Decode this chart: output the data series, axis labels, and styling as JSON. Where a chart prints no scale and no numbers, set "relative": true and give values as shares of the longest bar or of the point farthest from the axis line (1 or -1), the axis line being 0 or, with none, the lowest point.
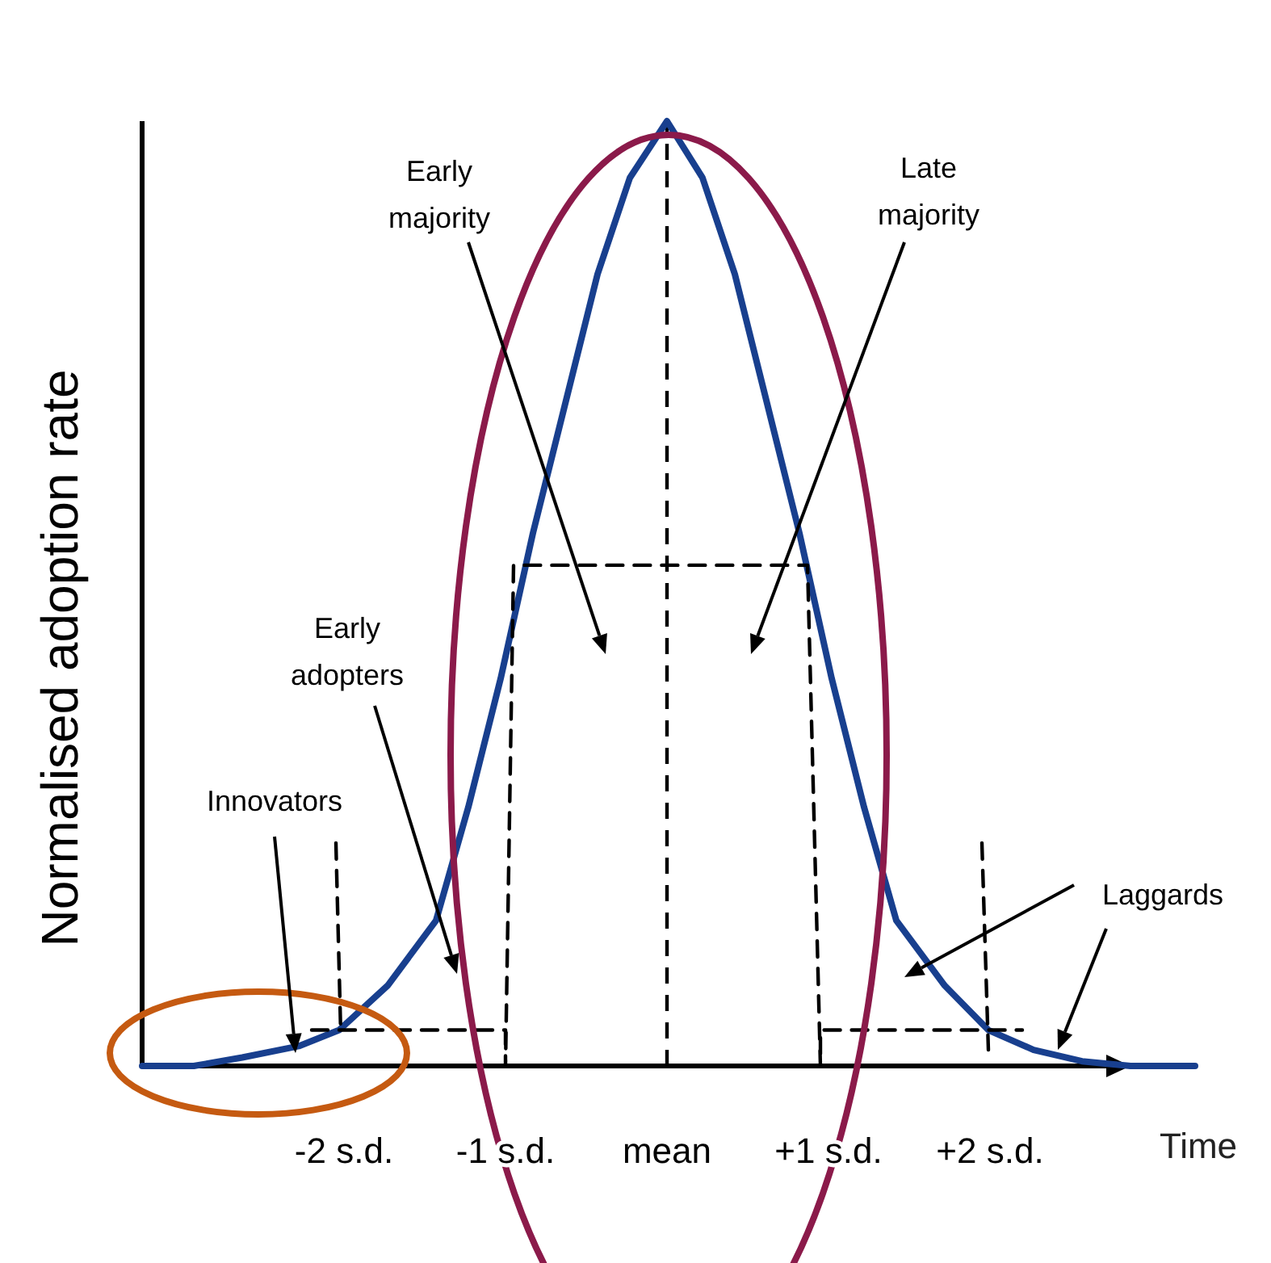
{
  "chart_data": {
    "type": "line",
    "relative": true,
    "xlabel": "Time",
    "ylabel": "Normalised adoption rate",
    "xlim": [
      -3.25,
      3.27
    ],
    "xticks": [
      {
        "value": -2,
        "label": "-2 s.d."
      },
      {
        "value": -1,
        "label": "-1 s.d."
      },
      {
        "value": 0,
        "label": "mean"
      },
      {
        "value": 1,
        "label": "+1 s.d."
      },
      {
        "value": 2,
        "label": "+2 s.d."
      }
    ],
    "tick_labels": "x",
    "grid": false,
    "marker": "none",
    "series": [
      {
        "color": "#183f8e",
        "line_style": "solid",
        "x": [
          -3.25,
          -2.93,
          -2.63,
          -2.28,
          -2.03,
          -1.73,
          -1.43,
          -1.23,
          -1.03,
          -0.83,
          -0.63,
          -0.43,
          -0.23,
          0,
          0.22,
          0.42,
          0.62,
          0.82,
          1.02,
          1.22,
          1.42,
          1.72,
          1.99,
          2.27,
          2.57,
          2.87,
          3.27
        ],
        "values": [
          0,
          0,
          0.009,
          0.021,
          0.038,
          0.085,
          0.154,
          0.274,
          0.41,
          0.564,
          0.701,
          0.838,
          0.94,
          1,
          0.94,
          0.838,
          0.701,
          0.564,
          0.41,
          0.274,
          0.154,
          0.085,
          0.038,
          0.017,
          0.005,
          0,
          0
        ]
      },
      {
        "color": "#000000",
        "line_style": "dashed",
        "x": [
          -2.2,
          -1,
          -1,
          -0.95,
          0.87,
          0.95,
          0.95,
          2.2
        ],
        "values": [
          0.038,
          0.038,
          0,
          0.53,
          0.53,
          0,
          0.038,
          0.038
        ]
      },
      {
        "color": "#000000",
        "line_style": "dashed",
        "x": [
          -2.05,
          -2.02
        ],
        "values": [
          0.236,
          0.034
        ]
      },
      {
        "color": "#000000",
        "line_style": "dashed",
        "x": [
          1.95,
          1.99
        ],
        "values": [
          0.236,
          0.017
        ]
      }
    ],
    "ref_lines": [
      {
        "axis": "x",
        "value": 0,
        "color": "#000000",
        "line_style": "dashed"
      }
    ],
    "annotations": [
      "Innovators",
      "Early\nadopters",
      "Early\nmajority",
      "Late\nmajority",
      "Laggards"
    ]
  }
}
